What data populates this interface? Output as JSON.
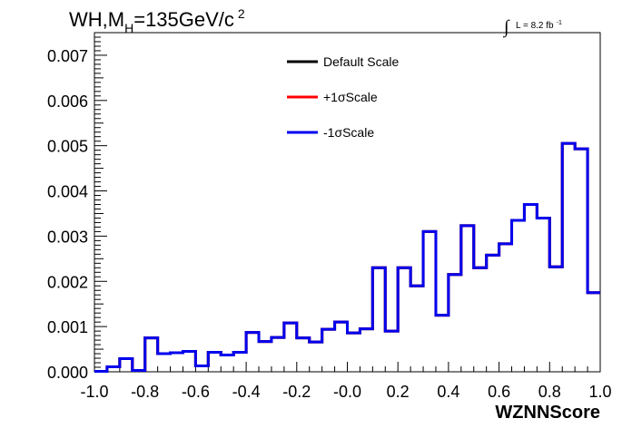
{
  "title": {
    "main_before": "WH,M",
    "main_sub": "H",
    "main_after": "=135GeV/c",
    "main_sup": "2"
  },
  "lumi": {
    "symbol": "∫",
    "text": "L = 8.2 fb",
    "sup": "-1"
  },
  "chart_data": {
    "type": "line",
    "style": "step-histogram",
    "xlabel": "WZNNScore",
    "ylabel": "",
    "xlim": [
      -1.0,
      1.0
    ],
    "ylim": [
      0.0,
      0.0075
    ],
    "x_ticks": [
      -1.0,
      -0.8,
      -0.6,
      -0.4,
      -0.2,
      0.0,
      0.2,
      0.4,
      0.6,
      0.8,
      1.0
    ],
    "x_tick_labels": [
      "-1.0",
      "-0.8",
      "-0.6",
      "-0.4",
      "-0.2",
      "-0.0",
      "0.2",
      "0.4",
      "0.6",
      "0.8",
      "1.0"
    ],
    "y_ticks": [
      0.0,
      0.001,
      0.002,
      0.003,
      0.004,
      0.005,
      0.006,
      0.007
    ],
    "y_tick_labels": [
      "0.000",
      "0.001",
      "0.002",
      "0.003",
      "0.004",
      "0.005",
      "0.006",
      "0.007"
    ],
    "bin_edges": [
      -1.0,
      -0.95,
      -0.9,
      -0.85,
      -0.8,
      -0.75,
      -0.7,
      -0.65,
      -0.6,
      -0.55,
      -0.5,
      -0.45,
      -0.4,
      -0.35,
      -0.3,
      -0.25,
      -0.2,
      -0.15,
      -0.1,
      -0.05,
      0.0,
      0.05,
      0.1,
      0.15,
      0.2,
      0.25,
      0.3,
      0.35,
      0.4,
      0.45,
      0.5,
      0.55,
      0.6,
      0.65,
      0.7,
      0.75,
      0.8,
      0.85,
      0.9,
      0.95,
      1.0
    ],
    "legend_position": "top-center",
    "grid": false,
    "series": [
      {
        "name": "Default Scale",
        "color": "#000000",
        "values": [
          1e-05,
          0.00011,
          0.00029,
          3e-05,
          0.00075,
          0.0004,
          0.00042,
          0.00045,
          0.00013,
          0.00043,
          0.00037,
          0.00043,
          0.00087,
          0.00067,
          0.00076,
          0.00108,
          0.00075,
          0.00066,
          0.00094,
          0.0011,
          0.00086,
          0.00095,
          0.0023,
          0.0009,
          0.0023,
          0.0019,
          0.0031,
          0.00125,
          0.00215,
          0.00323,
          0.0023,
          0.00258,
          0.00283,
          0.00335,
          0.0037,
          0.0034,
          0.00232,
          0.00505,
          0.00493,
          0.00175
        ]
      },
      {
        "name": "+1σScale",
        "color": "#ff0000",
        "values": [
          1e-05,
          0.00011,
          0.00029,
          3e-05,
          0.00075,
          0.0004,
          0.00042,
          0.00045,
          0.00013,
          0.00043,
          0.00037,
          0.00043,
          0.00087,
          0.00067,
          0.00076,
          0.00108,
          0.00075,
          0.00066,
          0.00094,
          0.0011,
          0.00086,
          0.00095,
          0.0023,
          0.0009,
          0.0023,
          0.0019,
          0.0031,
          0.00125,
          0.00215,
          0.00323,
          0.0023,
          0.00258,
          0.00283,
          0.00335,
          0.0037,
          0.0034,
          0.00232,
          0.00505,
          0.00493,
          0.00175
        ]
      },
      {
        "name": "-1σScale",
        "color": "#0000ee",
        "values": [
          1e-05,
          0.00011,
          0.00029,
          3e-05,
          0.00075,
          0.0004,
          0.00042,
          0.00045,
          0.00013,
          0.00043,
          0.00037,
          0.00043,
          0.00087,
          0.00067,
          0.00076,
          0.00108,
          0.00075,
          0.00066,
          0.00094,
          0.0011,
          0.00086,
          0.00095,
          0.0023,
          0.0009,
          0.0023,
          0.0019,
          0.0031,
          0.00125,
          0.00215,
          0.00323,
          0.0023,
          0.00258,
          0.00283,
          0.00335,
          0.0037,
          0.0034,
          0.00232,
          0.00505,
          0.00493,
          0.00175
        ]
      }
    ]
  }
}
